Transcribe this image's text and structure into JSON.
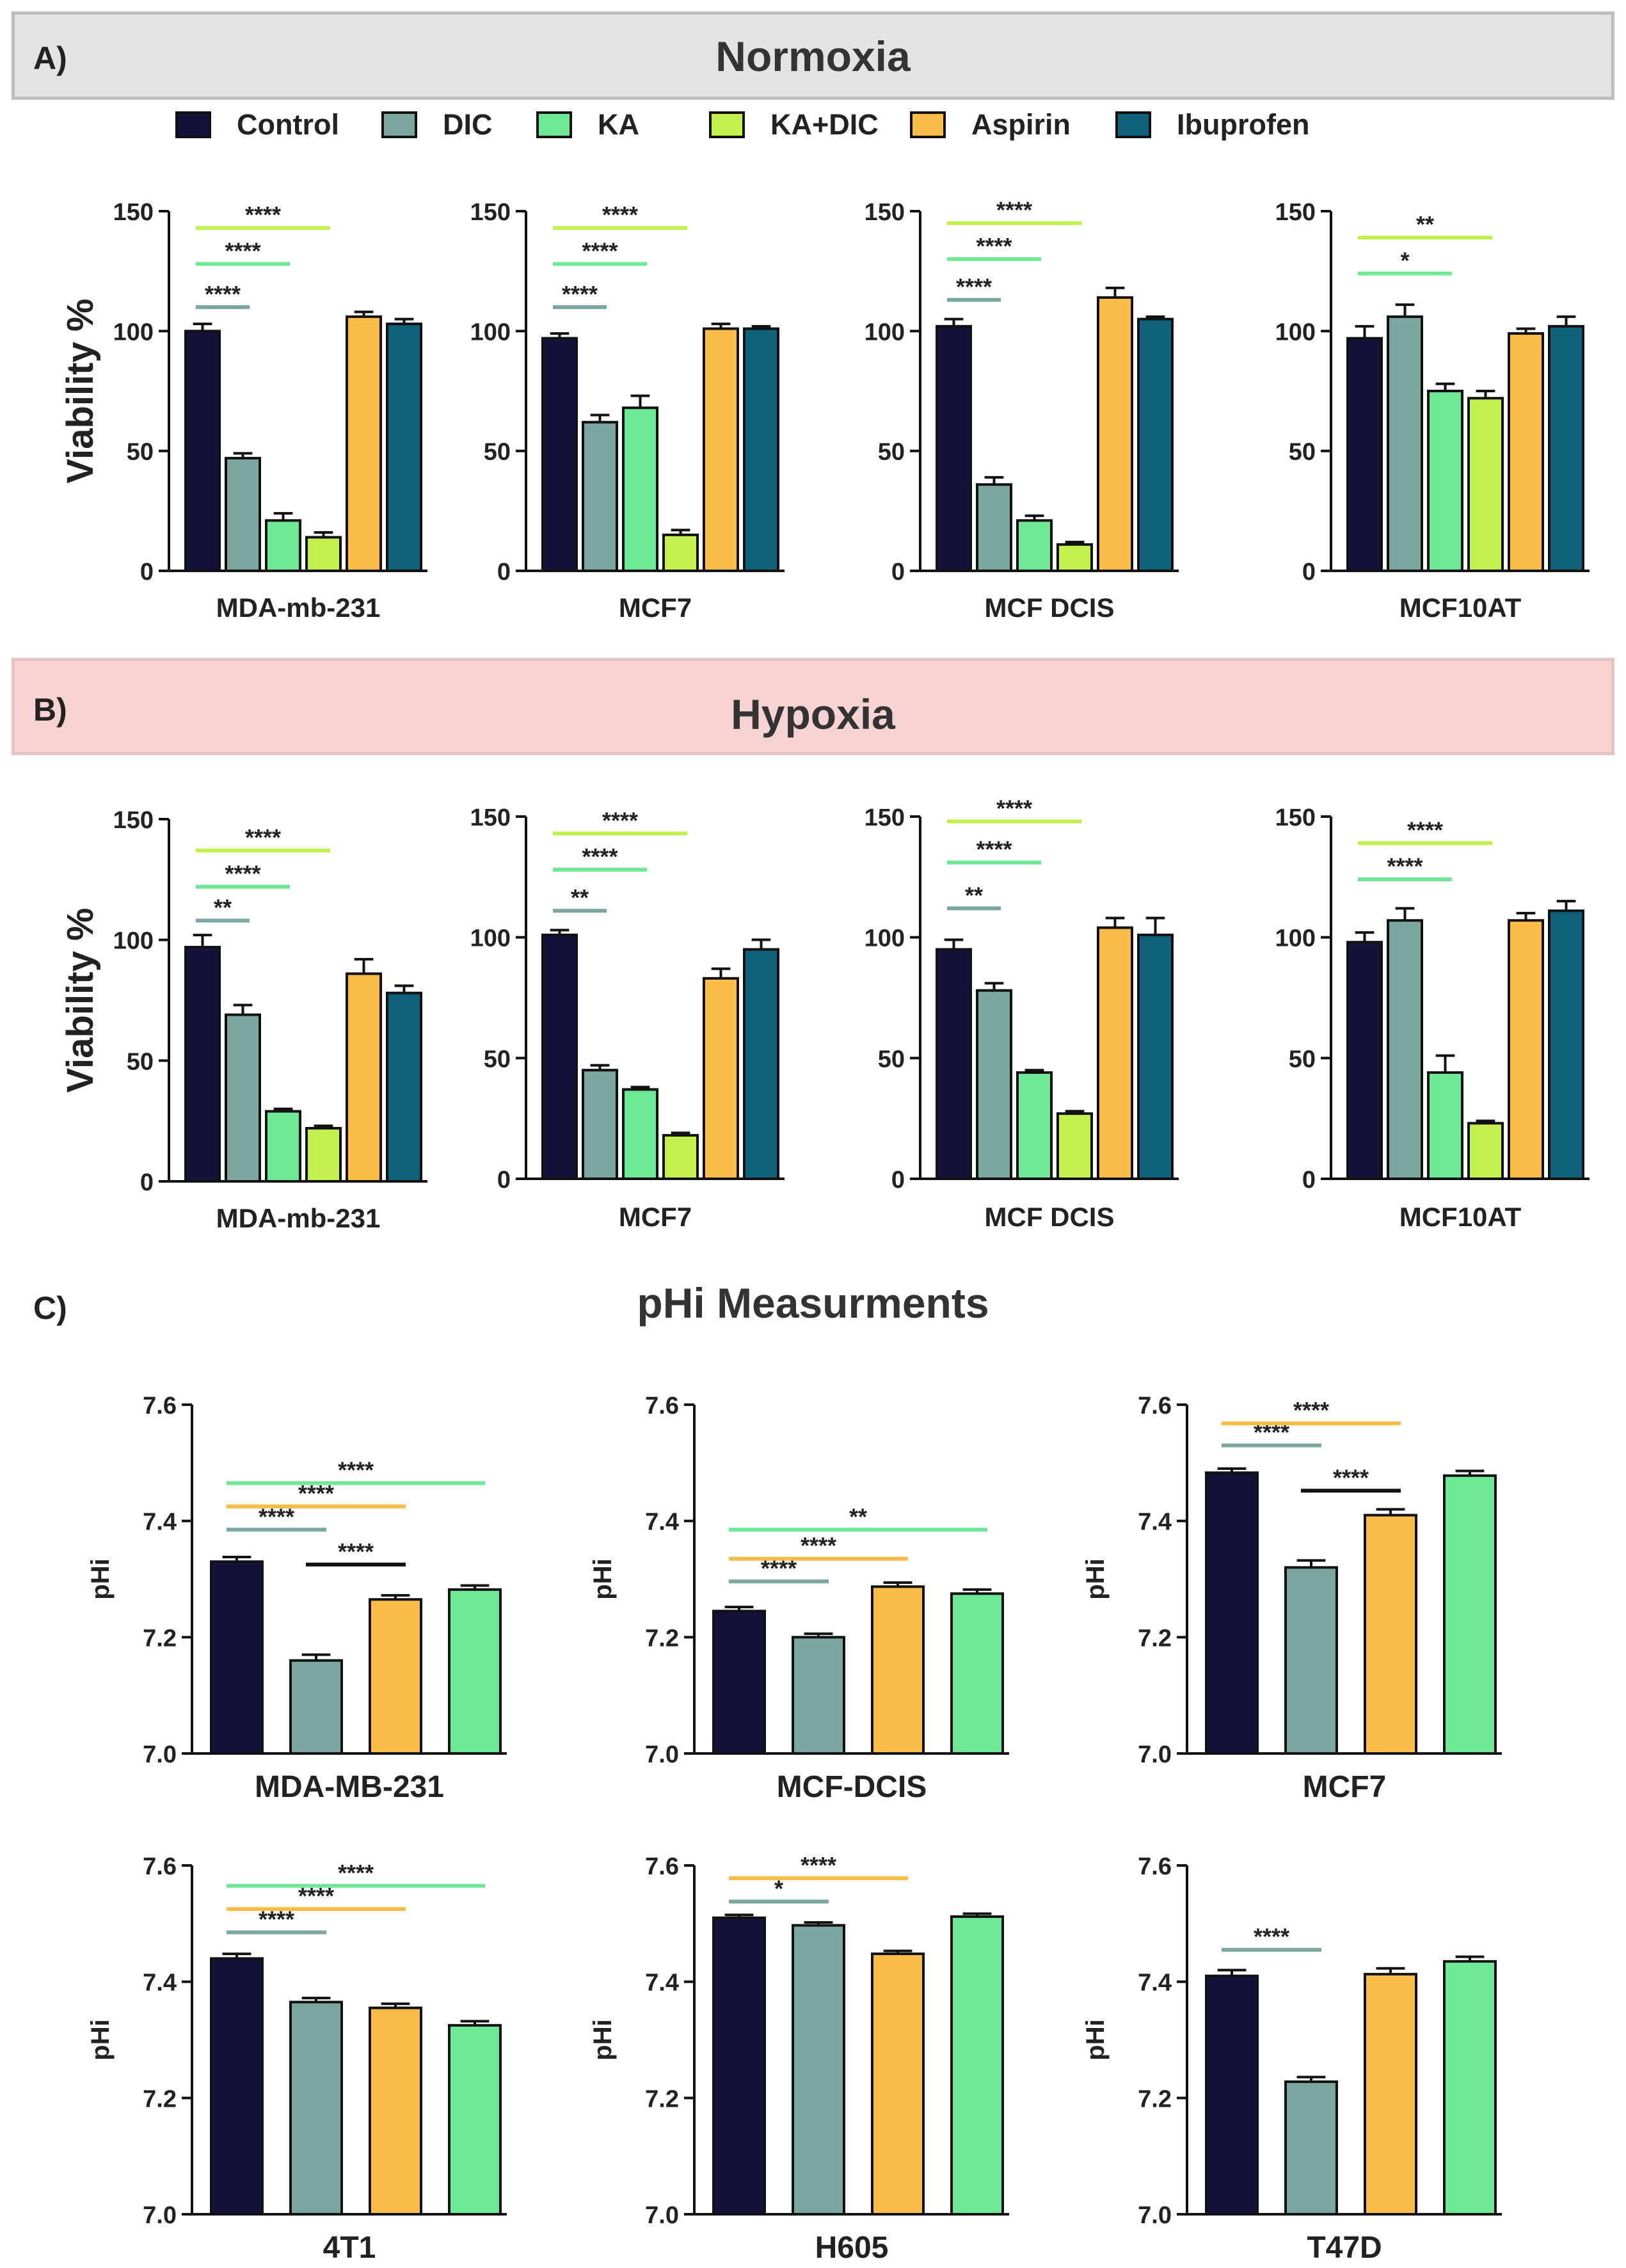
{
  "panels": {
    "a_letter": "A)",
    "b_letter": "B)",
    "c_letter": "C)",
    "a_title": "Normoxia",
    "b_title": "Hypoxia",
    "c_title": "pHi Measurments"
  },
  "legend": [
    {
      "name": "Control",
      "color": "#12123a"
    },
    {
      "name": "DIC",
      "color": "#7ca7a1"
    },
    {
      "name": "KA",
      "color": "#6fe896"
    },
    {
      "name": "KA+DIC",
      "color": "#c4f04d"
    },
    {
      "name": "Aspirin",
      "color": "#fcbd48"
    },
    {
      "name": "Ibuprofen",
      "color": "#11607c"
    }
  ],
  "chart_data": [
    {
      "type": "bar",
      "section": "Normoxia",
      "title": "MDA-mb-231",
      "ylabel": "Viability %",
      "ylim": [
        0,
        150
      ],
      "yticks": [
        "0",
        "50",
        "100",
        "150"
      ],
      "categories": [
        "Control",
        "DIC",
        "KA",
        "KA+DIC",
        "Aspirin",
        "Ibuprofen"
      ],
      "values": [
        100,
        47,
        21,
        14,
        106,
        103
      ],
      "errors": [
        3,
        2,
        3,
        2,
        2,
        2
      ],
      "significance": [
        {
          "label": "****",
          "from": 0,
          "to": 1,
          "color": "#7ca7a1",
          "y": 110
        },
        {
          "label": "****",
          "from": 0,
          "to": 2,
          "color": "#6fe896",
          "y": 128
        },
        {
          "label": "****",
          "from": 0,
          "to": 3,
          "color": "#c4f04d",
          "y": 143
        }
      ]
    },
    {
      "type": "bar",
      "section": "Normoxia",
      "title": "MCF7",
      "ylabel": "",
      "ylim": [
        0,
        150
      ],
      "yticks": [
        "0",
        "50",
        "100",
        "150"
      ],
      "categories": [
        "Control",
        "DIC",
        "KA",
        "KA+DIC",
        "Aspirin",
        "Ibuprofen"
      ],
      "values": [
        97,
        62,
        68,
        15,
        101,
        101
      ],
      "errors": [
        2,
        3,
        5,
        2,
        2,
        1
      ],
      "significance": [
        {
          "label": "****",
          "from": 0,
          "to": 1,
          "color": "#7ca7a1",
          "y": 110
        },
        {
          "label": "****",
          "from": 0,
          "to": 2,
          "color": "#6fe896",
          "y": 128
        },
        {
          "label": "****",
          "from": 0,
          "to": 3,
          "color": "#c4f04d",
          "y": 143
        }
      ]
    },
    {
      "type": "bar",
      "section": "Normoxia",
      "title": "MCF DCIS",
      "ylabel": "",
      "ylim": [
        0,
        150
      ],
      "yticks": [
        "0",
        "50",
        "100",
        "150"
      ],
      "categories": [
        "Control",
        "DIC",
        "KA",
        "KA+DIC",
        "Aspirin",
        "Ibuprofen"
      ],
      "values": [
        102,
        36,
        21,
        11,
        114,
        105
      ],
      "errors": [
        3,
        3,
        2,
        1,
        4,
        1
      ],
      "significance": [
        {
          "label": "****",
          "from": 0,
          "to": 1,
          "color": "#7ca7a1",
          "y": 113
        },
        {
          "label": "****",
          "from": 0,
          "to": 2,
          "color": "#6fe896",
          "y": 130
        },
        {
          "label": "****",
          "from": 0,
          "to": 3,
          "color": "#c4f04d",
          "y": 145
        }
      ]
    },
    {
      "type": "bar",
      "section": "Normoxia",
      "title": "MCF10AT",
      "ylabel": "",
      "ylim": [
        0,
        150
      ],
      "yticks": [
        "0",
        "50",
        "100",
        "150"
      ],
      "categories": [
        "Control",
        "DIC",
        "KA",
        "KA+DIC",
        "Aspirin",
        "Ibuprofen"
      ],
      "values": [
        97,
        106,
        75,
        72,
        99,
        102
      ],
      "errors": [
        5,
        5,
        3,
        3,
        2,
        4
      ],
      "significance": [
        {
          "label": "*",
          "from": 0,
          "to": 2,
          "color": "#6fe896",
          "y": 124
        },
        {
          "label": "**",
          "from": 0,
          "to": 3,
          "color": "#c4f04d",
          "y": 139
        }
      ]
    },
    {
      "type": "bar",
      "section": "Hypoxia",
      "title": "MDA-mb-231",
      "ylabel": "Viability %",
      "ylim": [
        0,
        150
      ],
      "yticks": [
        "0",
        "50",
        "100",
        "150"
      ],
      "categories": [
        "Control",
        "DIC",
        "KA",
        "KA+DIC",
        "Aspirin",
        "Ibuprofen"
      ],
      "values": [
        97,
        69,
        29,
        22,
        86,
        78
      ],
      "errors": [
        5,
        4,
        1,
        1,
        6,
        3
      ],
      "significance": [
        {
          "label": "**",
          "from": 0,
          "to": 1,
          "color": "#7ca7a1",
          "y": 108
        },
        {
          "label": "****",
          "from": 0,
          "to": 2,
          "color": "#6fe896",
          "y": 122
        },
        {
          "label": "****",
          "from": 0,
          "to": 3,
          "color": "#c4f04d",
          "y": 137
        }
      ]
    },
    {
      "type": "bar",
      "section": "Hypoxia",
      "title": "MCF7",
      "ylabel": "",
      "ylim": [
        0,
        150
      ],
      "yticks": [
        "0",
        "50",
        "100",
        "150"
      ],
      "categories": [
        "Control",
        "DIC",
        "KA",
        "KA+DIC",
        "Aspirin",
        "Ibuprofen"
      ],
      "values": [
        101,
        45,
        37,
        18,
        83,
        95
      ],
      "errors": [
        2,
        2,
        1,
        1,
        4,
        4
      ],
      "significance": [
        {
          "label": "**",
          "from": 0,
          "to": 1,
          "color": "#7ca7a1",
          "y": 111
        },
        {
          "label": "****",
          "from": 0,
          "to": 2,
          "color": "#6fe896",
          "y": 128
        },
        {
          "label": "****",
          "from": 0,
          "to": 3,
          "color": "#c4f04d",
          "y": 143
        }
      ]
    },
    {
      "type": "bar",
      "section": "Hypoxia",
      "title": "MCF DCIS",
      "ylabel": "",
      "ylim": [
        0,
        150
      ],
      "yticks": [
        "0",
        "50",
        "100",
        "150"
      ],
      "categories": [
        "Control",
        "DIC",
        "KA",
        "KA+DIC",
        "Aspirin",
        "Ibuprofen"
      ],
      "values": [
        95,
        78,
        44,
        27,
        104,
        101
      ],
      "errors": [
        4,
        3,
        1,
        1,
        4,
        7
      ],
      "significance": [
        {
          "label": "**",
          "from": 0,
          "to": 1,
          "color": "#7ca7a1",
          "y": 112
        },
        {
          "label": "****",
          "from": 0,
          "to": 2,
          "color": "#6fe896",
          "y": 131
        },
        {
          "label": "****",
          "from": 0,
          "to": 3,
          "color": "#c4f04d",
          "y": 148
        }
      ]
    },
    {
      "type": "bar",
      "section": "Hypoxia",
      "title": "MCF10AT",
      "ylabel": "",
      "ylim": [
        0,
        150
      ],
      "yticks": [
        "0",
        "50",
        "100",
        "150"
      ],
      "categories": [
        "Control",
        "DIC",
        "KA",
        "KA+DIC",
        "Aspirin",
        "Ibuprofen"
      ],
      "values": [
        98,
        107,
        44,
        23,
        107,
        111
      ],
      "errors": [
        4,
        5,
        7,
        1,
        3,
        4
      ],
      "significance": [
        {
          "label": "****",
          "from": 0,
          "to": 2,
          "color": "#6fe896",
          "y": 124
        },
        {
          "label": "****",
          "from": 0,
          "to": 3,
          "color": "#c4f04d",
          "y": 139
        }
      ]
    },
    {
      "type": "bar",
      "section": "pHi Measurments",
      "title": "MDA-MB-231",
      "ylabel": "pHi",
      "ylim": [
        7.0,
        7.6
      ],
      "yticks": [
        "7.0",
        "7.2",
        "7.4",
        "7.6"
      ],
      "categories": [
        "Control",
        "DIC",
        "Aspirin",
        "KA"
      ],
      "colors": [
        "#12123a",
        "#7ca7a1",
        "#fcbd48",
        "#6fe896"
      ],
      "values": [
        7.33,
        7.16,
        7.265,
        7.282
      ],
      "errors": [
        0.008,
        0.01,
        0.007,
        0.007
      ],
      "significance": [
        {
          "label": "****",
          "from": 0,
          "to": 1,
          "color": "#7ca7a1",
          "y": 7.385
        },
        {
          "label": "****",
          "from": 0,
          "to": 2,
          "color": "#fcbd48",
          "y": 7.425
        },
        {
          "label": "****",
          "from": 0,
          "to": 3,
          "color": "#6fe896",
          "y": 7.465
        },
        {
          "label": "****",
          "from": 1,
          "to": 2,
          "color": "#111111",
          "y": 7.325
        }
      ]
    },
    {
      "type": "bar",
      "section": "pHi Measurments",
      "title": "MCF-DCIS",
      "ylabel": "pHi",
      "ylim": [
        7.0,
        7.6
      ],
      "yticks": [
        "7.0",
        "7.2",
        "7.4",
        "7.6"
      ],
      "categories": [
        "Control",
        "DIC",
        "Aspirin",
        "KA"
      ],
      "colors": [
        "#12123a",
        "#7ca7a1",
        "#fcbd48",
        "#6fe896"
      ],
      "values": [
        7.245,
        7.2,
        7.287,
        7.275
      ],
      "errors": [
        0.007,
        0.006,
        0.007,
        0.007
      ],
      "significance": [
        {
          "label": "****",
          "from": 0,
          "to": 1,
          "color": "#7ca7a1",
          "y": 7.296
        },
        {
          "label": "****",
          "from": 0,
          "to": 2,
          "color": "#fcbd48",
          "y": 7.335
        },
        {
          "label": "**",
          "from": 0,
          "to": 3,
          "color": "#6fe896",
          "y": 7.385
        }
      ]
    },
    {
      "type": "bar",
      "section": "pHi Measurments",
      "title": "MCF7",
      "ylabel": "pHi",
      "ylim": [
        7.0,
        7.6
      ],
      "yticks": [
        "7.0",
        "7.2",
        "7.4",
        "7.6"
      ],
      "categories": [
        "Control",
        "DIC",
        "Aspirin",
        "KA"
      ],
      "colors": [
        "#12123a",
        "#7ca7a1",
        "#fcbd48",
        "#6fe896"
      ],
      "values": [
        7.483,
        7.32,
        7.41,
        7.478
      ],
      "errors": [
        0.007,
        0.012,
        0.01,
        0.008
      ],
      "significance": [
        {
          "label": "****",
          "from": 0,
          "to": 1,
          "color": "#7ca7a1",
          "y": 7.53
        },
        {
          "label": "****",
          "from": 0,
          "to": 2,
          "color": "#fcbd48",
          "y": 7.568
        },
        {
          "label": "****",
          "from": 1,
          "to": 2,
          "color": "#111111",
          "y": 7.452
        }
      ]
    },
    {
      "type": "bar",
      "section": "pHi Measurments",
      "title": "4T1",
      "ylabel": "pHi",
      "ylim": [
        7.0,
        7.6
      ],
      "yticks": [
        "7.0",
        "7.2",
        "7.4",
        "7.6"
      ],
      "categories": [
        "Control",
        "DIC",
        "Aspirin",
        "KA"
      ],
      "colors": [
        "#12123a",
        "#7ca7a1",
        "#fcbd48",
        "#6fe896"
      ],
      "values": [
        7.44,
        7.365,
        7.355,
        7.325
      ],
      "errors": [
        0.008,
        0.007,
        0.007,
        0.007
      ],
      "significance": [
        {
          "label": "****",
          "from": 0,
          "to": 1,
          "color": "#7ca7a1",
          "y": 7.485
        },
        {
          "label": "****",
          "from": 0,
          "to": 2,
          "color": "#fcbd48",
          "y": 7.525
        },
        {
          "label": "****",
          "from": 0,
          "to": 3,
          "color": "#6fe896",
          "y": 7.565
        }
      ]
    },
    {
      "type": "bar",
      "section": "pHi Measurments",
      "title": "H605",
      "ylabel": "pHi",
      "ylim": [
        7.0,
        7.6
      ],
      "yticks": [
        "7.0",
        "7.2",
        "7.4",
        "7.6"
      ],
      "categories": [
        "Control",
        "DIC",
        "Aspirin",
        "KA"
      ],
      "colors": [
        "#12123a",
        "#7ca7a1",
        "#fcbd48",
        "#6fe896"
      ],
      "values": [
        7.51,
        7.497,
        7.448,
        7.512
      ],
      "errors": [
        0.005,
        0.005,
        0.005,
        0.005
      ],
      "significance": [
        {
          "label": "*",
          "from": 0,
          "to": 1,
          "color": "#7ca7a1",
          "y": 7.538
        },
        {
          "label": "****",
          "from": 0,
          "to": 2,
          "color": "#fcbd48",
          "y": 7.578
        }
      ]
    },
    {
      "type": "bar",
      "section": "pHi Measurments",
      "title": "T47D",
      "ylabel": "pHi",
      "ylim": [
        7.0,
        7.6
      ],
      "yticks": [
        "7.0",
        "7.2",
        "7.4",
        "7.6"
      ],
      "categories": [
        "Control",
        "DIC",
        "Aspirin",
        "KA"
      ],
      "colors": [
        "#12123a",
        "#7ca7a1",
        "#fcbd48",
        "#6fe896"
      ],
      "values": [
        7.41,
        7.228,
        7.413,
        7.435
      ],
      "errors": [
        0.01,
        0.008,
        0.01,
        0.008
      ],
      "significance": [
        {
          "label": "****",
          "from": 0,
          "to": 1,
          "color": "#7ca7a1",
          "y": 7.455
        }
      ]
    }
  ]
}
